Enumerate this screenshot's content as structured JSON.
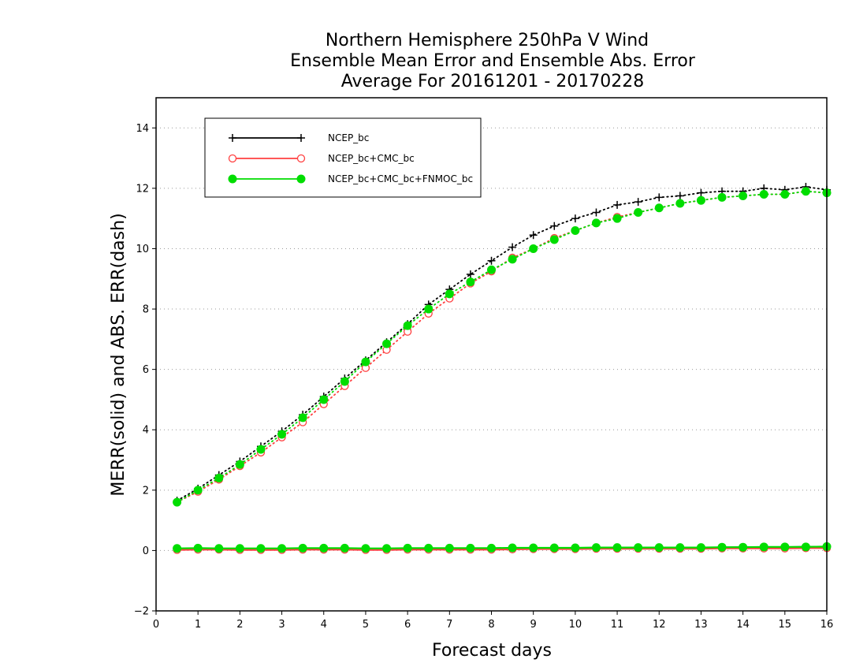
{
  "chart_data": {
    "type": "line",
    "title": [
      "Northern Hemisphere 250hPa V Wind",
      "Ensemble Mean Error and Ensemble Abs. Error",
      "Average For 20161201 - 20170228"
    ],
    "xlabel": "Forecast days",
    "ylabel": "MERR(solid) and ABS. ERR(dash)",
    "xlim": [
      0,
      16
    ],
    "ylim": [
      -2,
      15
    ],
    "xticks": [
      0,
      1,
      2,
      3,
      4,
      5,
      6,
      7,
      8,
      9,
      10,
      11,
      12,
      13,
      14,
      15,
      16
    ],
    "yticks": [
      -2,
      0,
      2,
      4,
      6,
      8,
      10,
      12,
      14
    ],
    "grid": "horizontal dotted",
    "legend_position": "top-left",
    "x": [
      0.5,
      1,
      1.5,
      2,
      2.5,
      3,
      3.5,
      4,
      4.5,
      5,
      5.5,
      6,
      6.5,
      7,
      7.5,
      8,
      8.5,
      9,
      9.5,
      10,
      10.5,
      11,
      11.5,
      12,
      12.5,
      13,
      13.5,
      14,
      14.5,
      15,
      15.5,
      16
    ],
    "series": [
      {
        "name": "NCEP_bc",
        "color": "#000000",
        "marker": "plus",
        "abs_err": [
          1.65,
          2.05,
          2.5,
          2.95,
          3.45,
          3.95,
          4.5,
          5.1,
          5.7,
          6.3,
          6.9,
          7.5,
          8.15,
          8.65,
          9.15,
          9.6,
          10.05,
          10.45,
          10.75,
          11.0,
          11.2,
          11.45,
          11.55,
          11.7,
          11.75,
          11.85,
          11.9,
          11.9,
          12.0,
          11.95,
          12.05,
          11.95
        ],
        "merr": [
          0.05,
          0.06,
          0.06,
          0.05,
          0.05,
          0.05,
          0.06,
          0.06,
          0.06,
          0.05,
          0.05,
          0.06,
          0.06,
          0.06,
          0.06,
          0.06,
          0.07,
          0.08,
          0.08,
          0.08,
          0.09,
          0.09,
          0.09,
          0.09,
          0.09,
          0.1,
          0.1,
          0.11,
          0.11,
          0.11,
          0.12,
          0.12
        ]
      },
      {
        "name": "NCEP_bc+CMC_bc",
        "color": "#ff4040",
        "marker": "open-circle",
        "abs_err": [
          1.6,
          1.95,
          2.35,
          2.8,
          3.25,
          3.75,
          4.25,
          4.85,
          5.45,
          6.05,
          6.65,
          7.25,
          7.85,
          8.35,
          8.85,
          9.25,
          9.7,
          10.0,
          10.35,
          10.6,
          10.85,
          11.05,
          11.2,
          11.35,
          11.5,
          11.6,
          11.7,
          11.75,
          11.8,
          11.8,
          11.9,
          11.85
        ],
        "merr": [
          0.02,
          0.03,
          0.03,
          0.02,
          0.02,
          0.02,
          0.03,
          0.03,
          0.03,
          0.02,
          0.02,
          0.03,
          0.03,
          0.03,
          0.03,
          0.03,
          0.04,
          0.05,
          0.05,
          0.05,
          0.06,
          0.06,
          0.06,
          0.06,
          0.06,
          0.06,
          0.07,
          0.07,
          0.07,
          0.07,
          0.08,
          0.08
        ]
      },
      {
        "name": "NCEP_bc+CMC_bc+FNMOC_bc",
        "color": "#00dd00",
        "marker": "filled-circle",
        "abs_err": [
          1.6,
          2.0,
          2.4,
          2.85,
          3.35,
          3.85,
          4.4,
          5.0,
          5.6,
          6.25,
          6.85,
          7.45,
          8.0,
          8.5,
          8.9,
          9.3,
          9.65,
          10.0,
          10.3,
          10.6,
          10.85,
          11.0,
          11.2,
          11.35,
          11.5,
          11.6,
          11.7,
          11.75,
          11.8,
          11.8,
          11.9,
          11.85
        ],
        "merr": [
          0.07,
          0.08,
          0.07,
          0.07,
          0.07,
          0.07,
          0.08,
          0.08,
          0.08,
          0.07,
          0.07,
          0.08,
          0.08,
          0.08,
          0.08,
          0.08,
          0.09,
          0.09,
          0.09,
          0.09,
          0.1,
          0.1,
          0.1,
          0.1,
          0.1,
          0.1,
          0.11,
          0.11,
          0.12,
          0.12,
          0.12,
          0.13
        ]
      }
    ]
  }
}
